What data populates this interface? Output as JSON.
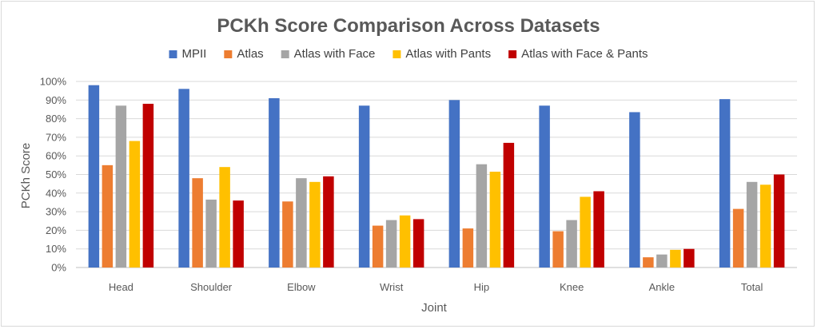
{
  "chart_data": {
    "type": "bar",
    "title": "PCKh Score Comparison Across Datasets",
    "xlabel": "Joint",
    "ylabel": "PCKh Score",
    "ylim": [
      0,
      100
    ],
    "y_ticks": [
      "0%",
      "10%",
      "20%",
      "30%",
      "40%",
      "50%",
      "60%",
      "70%",
      "80%",
      "90%",
      "100%"
    ],
    "legend_position": "top",
    "grid": true,
    "categories": [
      "Head",
      "Shoulder",
      "Elbow",
      "Wrist",
      "Hip",
      "Knee",
      "Ankle",
      "Total"
    ],
    "series": [
      {
        "name": "MPII",
        "color": "#4472c4",
        "values": [
          98,
          96,
          91,
          87,
          90,
          87,
          83.5,
          90.5
        ]
      },
      {
        "name": "Atlas",
        "color": "#ed7d31",
        "values": [
          55,
          48,
          35.5,
          22.5,
          21,
          19.5,
          5.5,
          31.5
        ]
      },
      {
        "name": "Atlas with Face",
        "color": "#a5a5a5",
        "values": [
          87,
          36.5,
          48,
          25.5,
          55.5,
          25.5,
          7,
          46
        ]
      },
      {
        "name": "Atlas with Pants",
        "color": "#ffc000",
        "values": [
          68,
          54,
          46,
          28,
          51.5,
          38,
          9.5,
          44.5
        ]
      },
      {
        "name": "Atlas with Face & Pants",
        "color": "#c00000",
        "values": [
          88,
          36,
          49,
          26,
          67,
          41,
          10,
          50
        ]
      }
    ]
  }
}
